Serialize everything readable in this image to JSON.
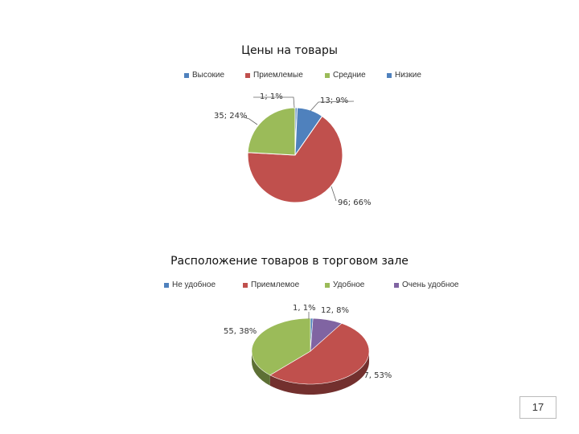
{
  "chart_data": [
    {
      "type": "pie",
      "title": "Цены на товары",
      "legend_position": "top",
      "categories": [
        "Высокие",
        "Приемлемые",
        "Средние",
        "Низкие"
      ],
      "values": [
        1,
        96,
        35,
        13
      ],
      "labels": [
        "1; 1%",
        "96; 66%",
        "35; 24%",
        "13; 9%"
      ],
      "colors": [
        "#4F81BD",
        "#C0504D",
        "#9BBB59",
        "#4F81BD"
      ]
    },
    {
      "type": "pie",
      "title": "Расположение товаров в торговом зале",
      "legend_position": "top",
      "categories": [
        "Не удобное",
        "Приемлемое",
        "Удобное",
        "Очень удобное"
      ],
      "values": [
        1,
        77,
        55,
        12
      ],
      "labels": [
        "1, 1%",
        "77, 53%",
        "55, 38%",
        "12, 8%"
      ],
      "colors": [
        "#4F81BD",
        "#C0504D",
        "#9BBB59",
        "#8064A2"
      ]
    }
  ],
  "page_number": "17"
}
